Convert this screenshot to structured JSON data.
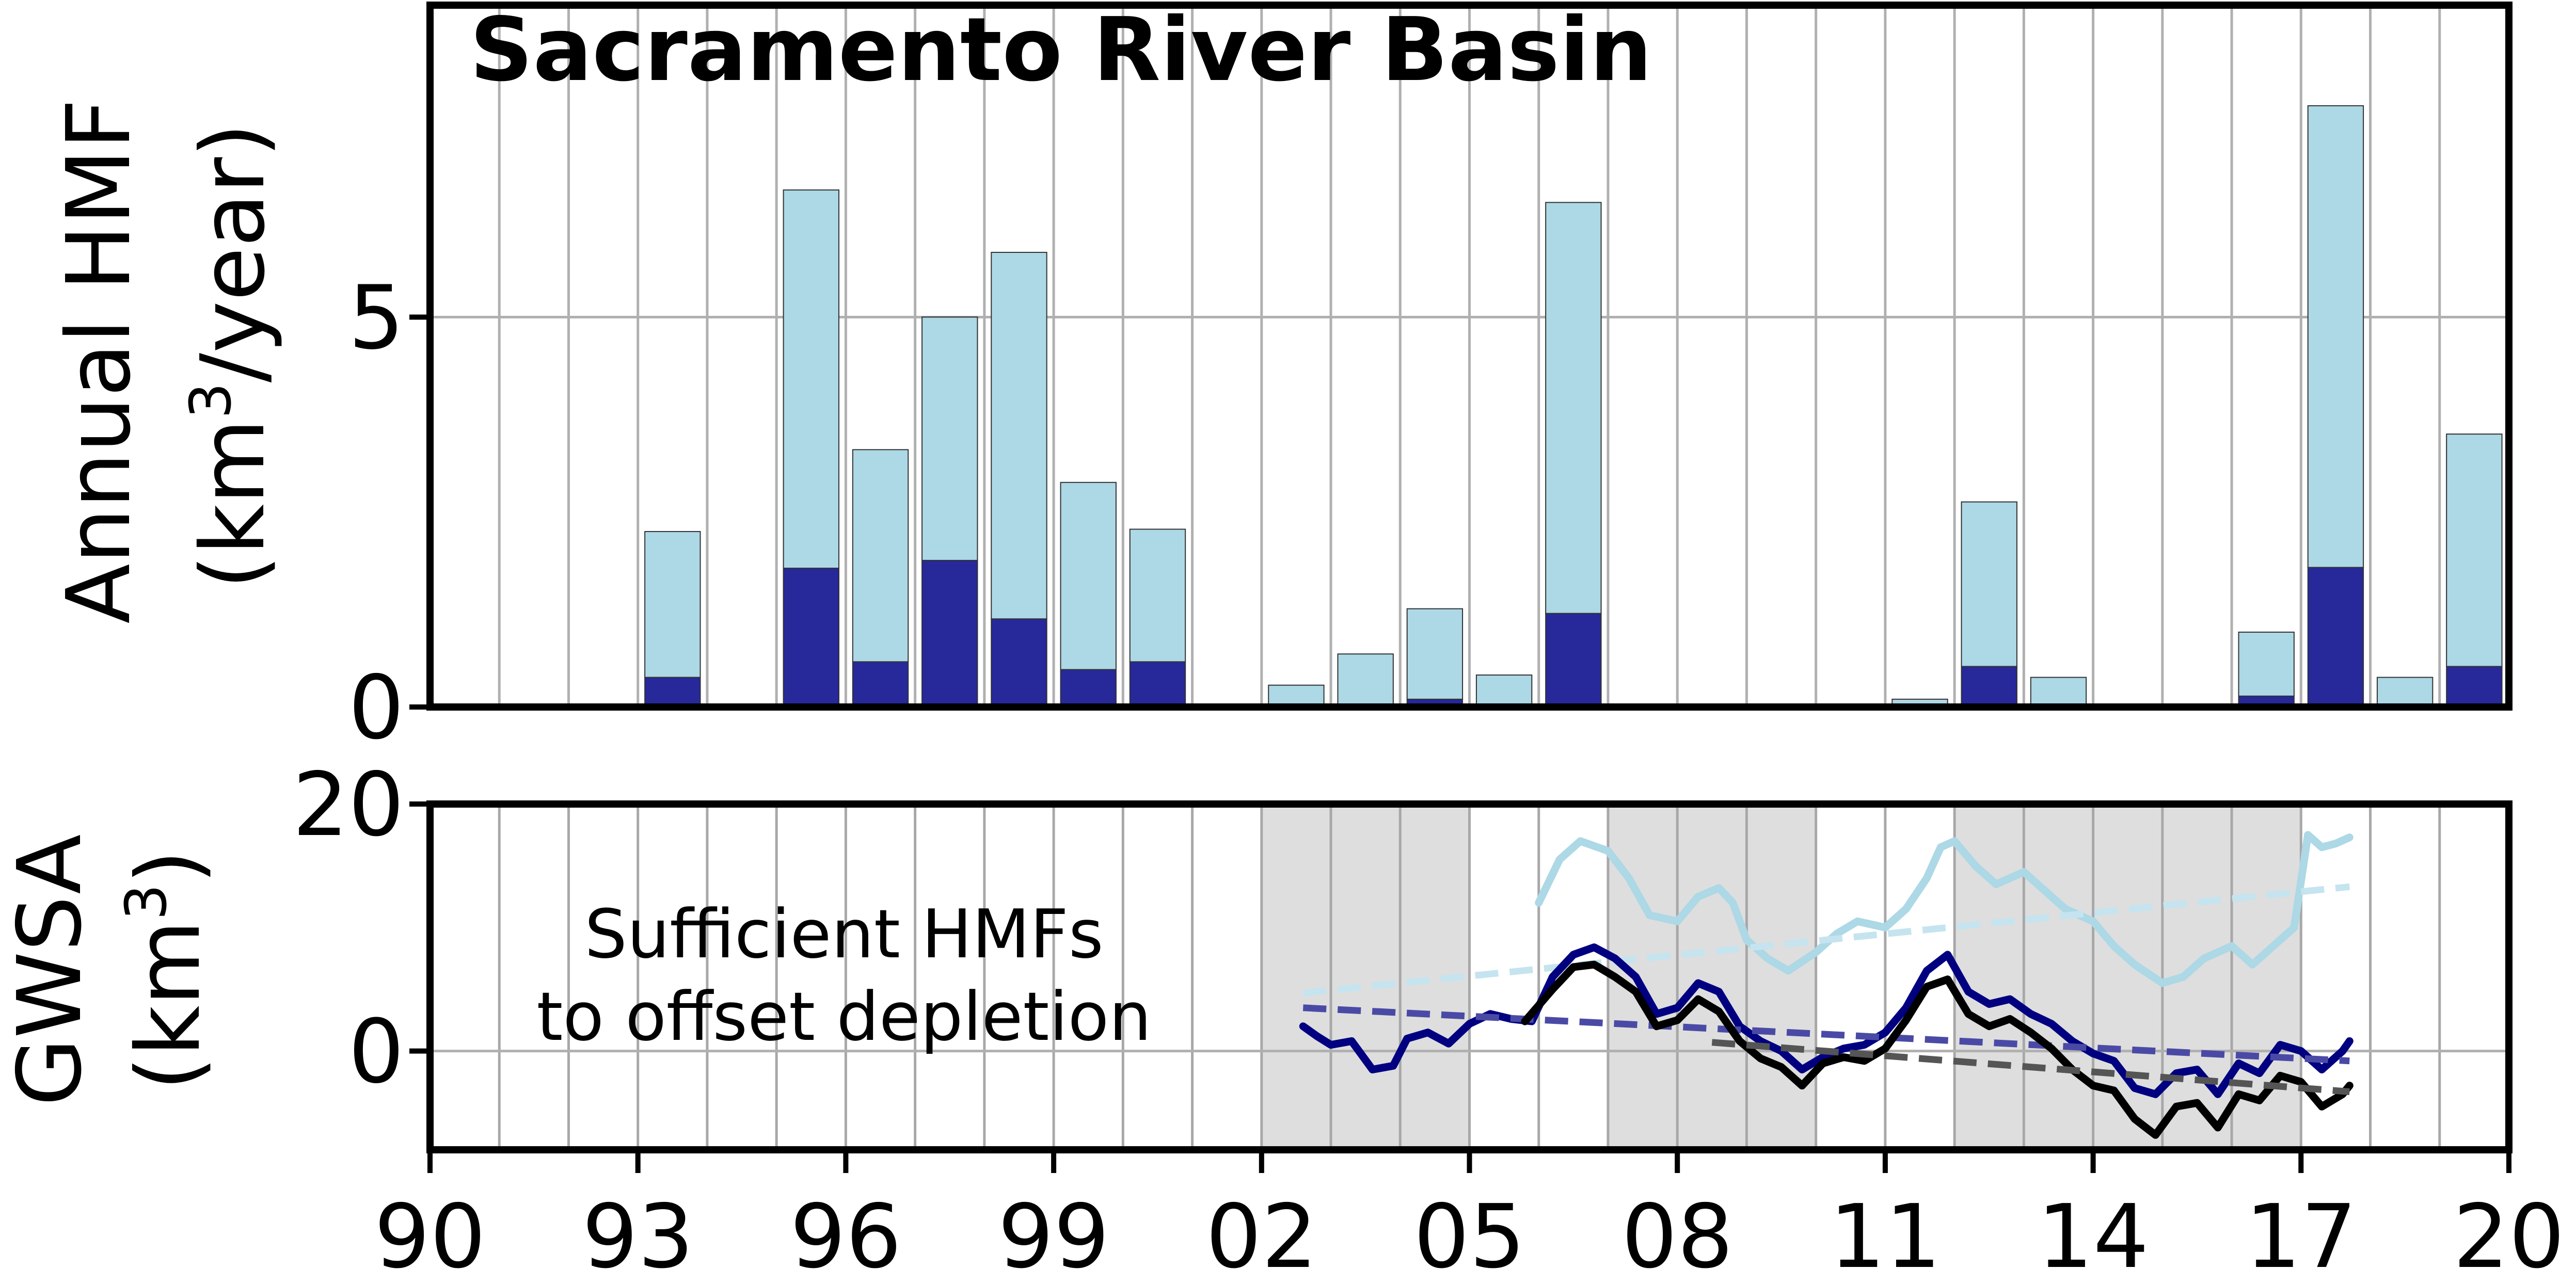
{
  "chart_data": [
    {
      "type": "bar",
      "title": "Sacramento River Basin",
      "ylabel_line1": "Annual HMF",
      "ylabel_line2_prefix": "(km",
      "ylabel_line2_sup": "3",
      "ylabel_line2_suffix": "/year)",
      "xlim": [
        1990,
        2020
      ],
      "ylim": [
        0,
        9
      ],
      "yticks": [
        0,
        5
      ],
      "grid": true,
      "stacked": true,
      "categories": [
        1993,
        1995,
        1996,
        1997,
        1998,
        1999,
        2000,
        2002,
        2003,
        2004,
        2005,
        2006,
        2011,
        2012,
        2013,
        2016,
        2017,
        2018,
        2019
      ],
      "series": [
        {
          "key": "dark",
          "color": "#27289a",
          "values": [
            0.38,
            1.78,
            0.58,
            1.88,
            1.13,
            0.48,
            0.58,
            0.0,
            0.0,
            0.1,
            0.0,
            1.2,
            0.0,
            0.52,
            0.0,
            0.14,
            1.79,
            0.0,
            0.52
          ]
        },
        {
          "key": "light",
          "color": "#add8e6",
          "values": [
            1.87,
            4.85,
            2.72,
            3.12,
            4.7,
            2.4,
            1.7,
            0.28,
            0.68,
            1.16,
            0.41,
            5.27,
            0.1,
            2.11,
            0.38,
            0.82,
            5.92,
            0.38,
            2.98
          ]
        }
      ]
    },
    {
      "type": "line",
      "ylabel_line1": "GWSA",
      "ylabel_line2_prefix": "(km",
      "ylabel_line2_sup": "3",
      "ylabel_line2_suffix": ")",
      "xlim": [
        1990,
        2020
      ],
      "ylim": [
        -8,
        20
      ],
      "yticks": [
        0,
        20
      ],
      "xticks": [
        1990,
        1993,
        1996,
        1999,
        2002,
        2005,
        2008,
        2011,
        2014,
        2017,
        2020
      ],
      "xtick_labels": [
        "90",
        "93",
        "96",
        "99",
        "02",
        "05",
        "08",
        "11",
        "14",
        "17",
        "20"
      ],
      "grid": true,
      "annotation_line1": "Sufficient HMFs",
      "annotation_line2": "to offset depletion",
      "shaded_periods": [
        [
          2002,
          2005
        ],
        [
          2007,
          2010
        ],
        [
          2012,
          2017
        ]
      ],
      "shade_color": "#dedede",
      "series": [
        {
          "key": "light",
          "color": "#add8e6",
          "x": [
            2006.0,
            2006.3,
            2006.6,
            2007.0,
            2007.3,
            2007.6,
            2008.0,
            2008.3,
            2008.6,
            2008.8,
            2009.0,
            2009.3,
            2009.6,
            2010.0,
            2010.3,
            2010.6,
            2011.0,
            2011.3,
            2011.6,
            2011.8,
            2012.0,
            2012.3,
            2012.6,
            2013.0,
            2013.3,
            2013.6,
            2014.0,
            2014.3,
            2014.6,
            2015.0,
            2015.3,
            2015.6,
            2016.0,
            2016.3,
            2016.6,
            2016.9,
            2017.1,
            2017.3,
            2017.5,
            2017.7
          ],
          "values": [
            12.0,
            15.5,
            17.0,
            16.2,
            14.0,
            11.0,
            10.5,
            12.5,
            13.2,
            12.0,
            9.0,
            7.5,
            6.5,
            8.0,
            9.5,
            10.5,
            10.0,
            11.5,
            14.0,
            16.5,
            17.0,
            15.0,
            13.5,
            14.5,
            13.0,
            11.5,
            10.5,
            8.5,
            7.0,
            5.5,
            6.0,
            7.5,
            8.5,
            7.0,
            8.5,
            10.0,
            17.5,
            16.5,
            16.8,
            17.3
          ]
        },
        {
          "key": "light-trend",
          "color": "#c5e4ef",
          "dashed": true,
          "x": [
            2002.6,
            2017.7
          ],
          "values": [
            4.7,
            13.3
          ]
        },
        {
          "key": "navy",
          "color": "#000080",
          "x": [
            2002.6,
            2002.8,
            2003.0,
            2003.3,
            2003.6,
            2003.9,
            2004.1,
            2004.4,
            2004.7,
            2005.0,
            2005.3,
            2005.6,
            2005.9,
            2006.2,
            2006.5,
            2006.8,
            2007.1,
            2007.4,
            2007.7,
            2008.0,
            2008.3,
            2008.6,
            2008.9,
            2009.2,
            2009.5,
            2009.8,
            2010.1,
            2010.4,
            2010.7,
            2011.0,
            2011.3,
            2011.6,
            2011.9,
            2012.2,
            2012.5,
            2012.8,
            2013.1,
            2013.4,
            2013.7,
            2014.0,
            2014.3,
            2014.6,
            2014.9,
            2015.2,
            2015.5,
            2015.8,
            2016.1,
            2016.4,
            2016.7,
            2017.0,
            2017.3,
            2017.6,
            2017.7
          ],
          "values": [
            2.0,
            1.2,
            0.5,
            0.8,
            -1.5,
            -1.2,
            1.0,
            1.5,
            0.6,
            2.2,
            3.0,
            2.6,
            2.4,
            6.0,
            7.8,
            8.4,
            7.5,
            6.0,
            3.0,
            3.5,
            5.5,
            4.8,
            2.0,
            0.8,
            0.0,
            -1.5,
            -0.5,
            0.2,
            0.5,
            1.5,
            3.5,
            6.5,
            7.8,
            4.8,
            3.8,
            4.2,
            3.0,
            2.2,
            0.8,
            -0.2,
            -0.8,
            -3.0,
            -3.5,
            -1.8,
            -1.5,
            -3.5,
            -1.0,
            -1.8,
            0.5,
            0.0,
            -1.5,
            0.0,
            0.8
          ]
        },
        {
          "key": "navy-trend",
          "color": "#4a4aa6",
          "dashed": true,
          "x": [
            2002.6,
            2017.7
          ],
          "values": [
            3.5,
            -0.8
          ]
        },
        {
          "key": "black",
          "color": "#000000",
          "x": [
            2005.8,
            2006.2,
            2006.5,
            2006.8,
            2007.1,
            2007.4,
            2007.7,
            2008.0,
            2008.3,
            2008.6,
            2008.9,
            2009.2,
            2009.5,
            2009.8,
            2010.1,
            2010.4,
            2010.7,
            2011.0,
            2011.3,
            2011.6,
            2011.9,
            2012.2,
            2012.5,
            2012.8,
            2013.1,
            2013.4,
            2013.7,
            2014.0,
            2014.3,
            2014.6,
            2014.9,
            2015.2,
            2015.5,
            2015.8,
            2016.1,
            2016.4,
            2016.7,
            2017.0,
            2017.3,
            2017.6,
            2017.7
          ],
          "values": [
            2.4,
            5.0,
            6.8,
            7.0,
            6.0,
            4.8,
            2.0,
            2.5,
            4.2,
            3.2,
            0.8,
            -0.6,
            -1.3,
            -2.8,
            -1.0,
            -0.5,
            -0.8,
            0.2,
            2.5,
            5.2,
            5.8,
            3.0,
            2.0,
            2.6,
            1.5,
            0.2,
            -1.5,
            -2.8,
            -3.2,
            -5.5,
            -6.8,
            -4.5,
            -4.2,
            -6.2,
            -3.5,
            -4.0,
            -2.0,
            -2.5,
            -4.5,
            -3.5,
            -2.8
          ]
        },
        {
          "key": "black-trend",
          "color": "#555555",
          "dashed": true,
          "x": [
            2008.5,
            2017.7
          ],
          "values": [
            0.7,
            -3.3
          ]
        }
      ]
    }
  ]
}
